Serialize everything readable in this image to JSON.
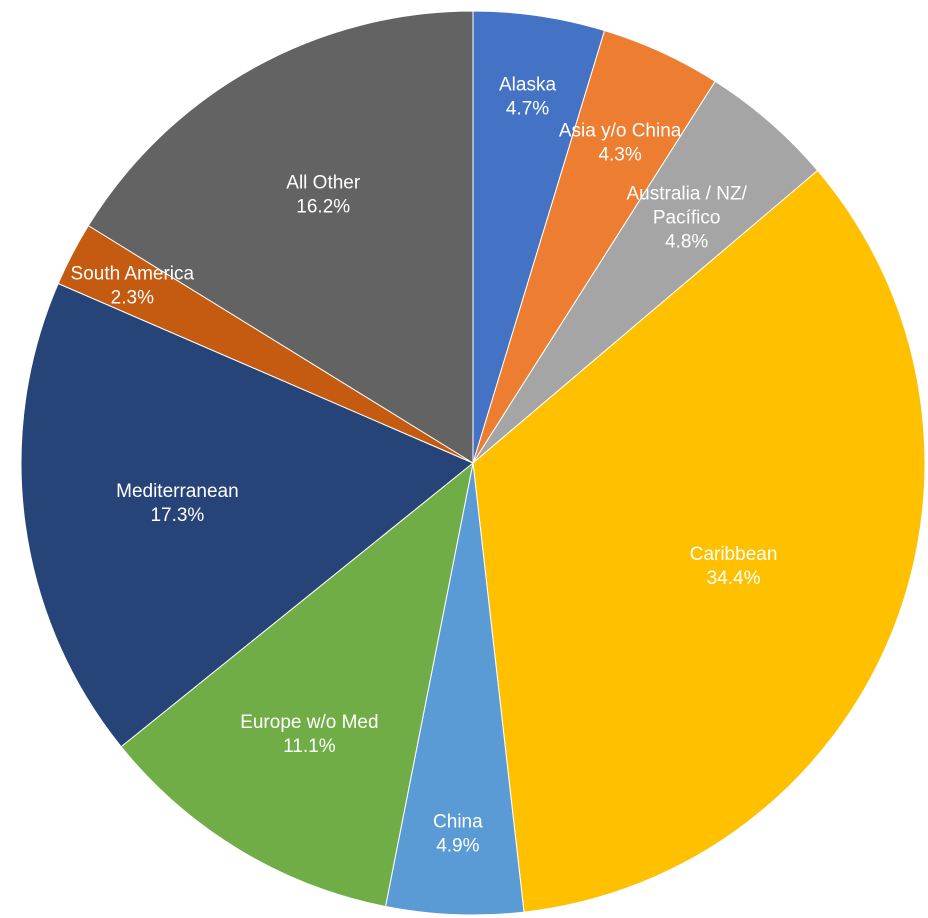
{
  "chart_data": {
    "type": "pie",
    "title": "",
    "slices": [
      {
        "label": "Alaska",
        "value": 4.7,
        "value_label": "4.7%",
        "color": "#4472C4"
      },
      {
        "label": "Asia y/o China",
        "value": 4.3,
        "value_label": "4.3%",
        "color": "#ED7D31"
      },
      {
        "label": "Australia / NZ/ Pacífico",
        "label_lines": [
          "Australia / NZ/",
          "Pacífico"
        ],
        "value": 4.8,
        "value_label": "4.8%",
        "color": "#A5A5A5"
      },
      {
        "label": "Caribbean",
        "value": 34.4,
        "value_label": "34.4%",
        "color": "#FFC000"
      },
      {
        "label": "China",
        "value": 4.9,
        "value_label": "4.9%",
        "color": "#5B9BD5"
      },
      {
        "label": "Europe w/o Med",
        "value": 11.1,
        "value_label": "11.1%",
        "color": "#70AD47"
      },
      {
        "label": "Mediterranean",
        "value": 17.3,
        "value_label": "17.3%",
        "color": "#264478"
      },
      {
        "label": "South America",
        "value": 2.3,
        "value_label": "2.3%",
        "color": "#C55A11"
      },
      {
        "label": "All Other",
        "value": 16.2,
        "value_label": "16.2%",
        "color": "#636363"
      }
    ]
  }
}
